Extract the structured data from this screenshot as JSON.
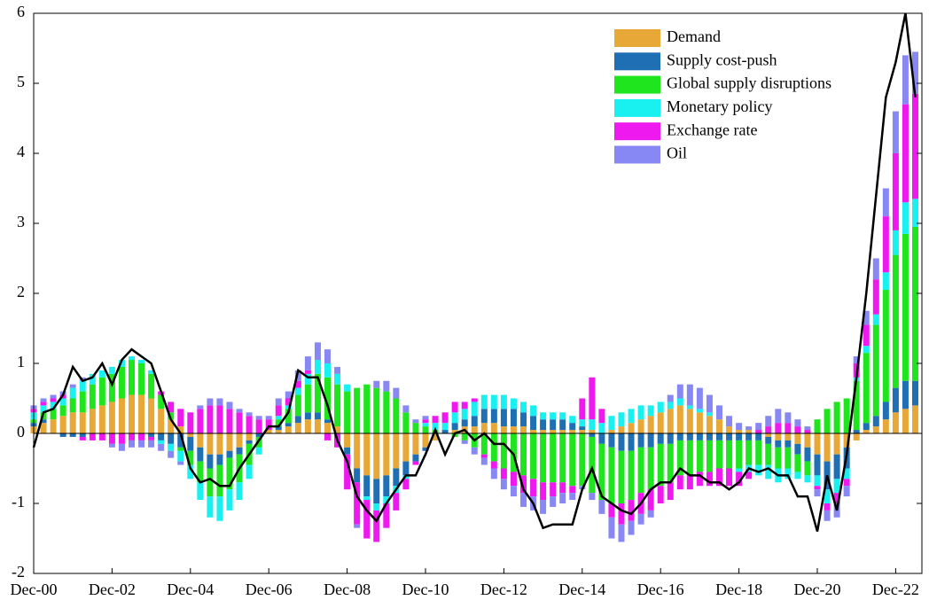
{
  "chart_data": {
    "type": "bar",
    "stacked": true,
    "categories": [
      "Dec-00",
      null,
      null,
      null,
      null,
      null,
      null,
      null,
      "Dec-02",
      null,
      null,
      null,
      null,
      null,
      null,
      null,
      "Dec-04",
      null,
      null,
      null,
      null,
      null,
      null,
      null,
      "Dec-06",
      null,
      null,
      null,
      null,
      null,
      null,
      null,
      "Dec-08",
      null,
      null,
      null,
      null,
      null,
      null,
      null,
      "Dec-10",
      null,
      null,
      null,
      null,
      null,
      null,
      null,
      "Dec-12",
      null,
      null,
      null,
      null,
      null,
      null,
      null,
      "Dec-14",
      null,
      null,
      null,
      null,
      null,
      null,
      null,
      "Dec-16",
      null,
      null,
      null,
      null,
      null,
      null,
      null,
      "Dec-18",
      null,
      null,
      null,
      null,
      null,
      null,
      null,
      "Dec-20",
      null,
      null,
      null,
      null,
      null,
      null,
      null,
      "Dec-22",
      null,
      null
    ],
    "series": [
      {
        "name": "Demand",
        "color": "#e8a838",
        "values": [
          0.1,
          0.15,
          0.2,
          0.25,
          0.3,
          0.3,
          0.35,
          0.4,
          0.45,
          0.5,
          0.55,
          0.55,
          0.5,
          0.35,
          0.2,
          0.1,
          -0.05,
          -0.2,
          -0.3,
          -0.3,
          -0.25,
          -0.2,
          -0.1,
          0,
          0.05,
          0.05,
          0.1,
          0.15,
          0.2,
          0.2,
          0.15,
          0.1,
          -0.2,
          -0.5,
          -0.6,
          -0.65,
          -0.6,
          -0.5,
          -0.4,
          -0.3,
          -0.2,
          -0.1,
          0,
          0.05,
          0.1,
          0.1,
          0.15,
          0.15,
          0.1,
          0.1,
          0.1,
          0.05,
          0.05,
          0.05,
          0.05,
          0.05,
          0.05,
          0.05,
          0,
          0.05,
          0.1,
          0.15,
          0.2,
          0.25,
          0.3,
          0.35,
          0.4,
          0.35,
          0.3,
          0.25,
          0.2,
          0.1,
          0.05,
          0.05,
          0,
          -0.05,
          -0.1,
          -0.1,
          -0.15,
          -0.2,
          -0.3,
          -0.4,
          -0.3,
          -0.2,
          -0.1,
          0.05,
          0.1,
          0.2,
          0.3,
          0.35,
          0.4
        ]
      },
      {
        "name": "Supply cost-push",
        "color": "#1f6fb5",
        "values": [
          0.05,
          0.05,
          0,
          -0.05,
          -0.05,
          -0.05,
          0,
          0,
          0,
          0,
          0,
          0,
          -0.05,
          -0.1,
          -0.15,
          -0.2,
          -0.2,
          -0.2,
          -0.2,
          -0.15,
          -0.1,
          -0.1,
          -0.05,
          -0.05,
          0,
          0.05,
          0.05,
          0.1,
          0.1,
          0.1,
          0.05,
          0,
          -0.1,
          -0.2,
          -0.3,
          -0.35,
          -0.3,
          -0.25,
          -0.2,
          -0.1,
          -0.05,
          0,
          0.05,
          0.1,
          0.1,
          0.15,
          0.2,
          0.2,
          0.25,
          0.25,
          0.2,
          0.2,
          0.15,
          0.15,
          0.15,
          0.1,
          0.05,
          -0.05,
          -0.15,
          -0.2,
          -0.25,
          -0.25,
          -0.2,
          -0.2,
          -0.15,
          -0.15,
          -0.1,
          -0.1,
          -0.1,
          -0.1,
          -0.1,
          -0.1,
          -0.1,
          -0.1,
          -0.1,
          -0.1,
          -0.1,
          -0.1,
          -0.15,
          -0.2,
          -0.3,
          -0.4,
          -0.35,
          -0.3,
          0.05,
          0.1,
          0.15,
          0.25,
          0.35,
          0.4,
          0.35
        ]
      },
      {
        "name": "Global supply disruptions",
        "color": "#1ee51e",
        "values": [
          0.05,
          0.1,
          0.15,
          0.15,
          0.2,
          0.3,
          0.35,
          0.4,
          0.4,
          0.45,
          0.5,
          0.45,
          0.35,
          0.2,
          0.1,
          -0.05,
          -0.2,
          -0.3,
          -0.4,
          -0.45,
          -0.45,
          -0.4,
          -0.3,
          -0.15,
          0,
          0.1,
          0.2,
          0.3,
          0.4,
          0.55,
          0.6,
          0.6,
          0.6,
          0.65,
          0.7,
          0.65,
          0.6,
          0.5,
          0.3,
          0.15,
          0.1,
          0.05,
          0,
          -0.05,
          -0.1,
          -0.2,
          -0.3,
          -0.4,
          -0.5,
          -0.55,
          -0.6,
          -0.65,
          -0.7,
          -0.7,
          -0.7,
          -0.75,
          -0.75,
          -0.8,
          -0.8,
          -0.8,
          -0.75,
          -0.7,
          -0.65,
          -0.6,
          -0.6,
          -0.55,
          -0.5,
          -0.5,
          -0.45,
          -0.45,
          -0.4,
          -0.4,
          -0.4,
          -0.35,
          -0.35,
          -0.3,
          -0.3,
          -0.3,
          -0.25,
          -0.2,
          0.2,
          0.35,
          0.45,
          0.5,
          0.7,
          1.0,
          1.3,
          1.6,
          1.9,
          2.1,
          2.2
        ]
      },
      {
        "name": "Monetary policy",
        "color": "#19f0f0",
        "values": [
          0.1,
          0.1,
          0.1,
          0.1,
          0.15,
          0.15,
          0.15,
          0.1,
          0.1,
          0.1,
          0.05,
          0.05,
          0.05,
          -0.05,
          -0.1,
          -0.15,
          -0.2,
          -0.25,
          -0.3,
          -0.35,
          -0.3,
          -0.25,
          -0.2,
          -0.1,
          0,
          0.05,
          0.05,
          0.1,
          0.15,
          0.2,
          0.2,
          0.15,
          0.1,
          0,
          -0.05,
          -0.1,
          -0.1,
          -0.1,
          -0.05,
          0,
          0.05,
          0.1,
          0.1,
          0.15,
          0.15,
          0.2,
          0.2,
          0.2,
          0.2,
          0.15,
          0.15,
          0.15,
          0.1,
          0.1,
          0.1,
          0.1,
          0.1,
          0.15,
          0.15,
          0.2,
          0.2,
          0.2,
          0.2,
          0.15,
          0.15,
          0.1,
          0.1,
          0.05,
          0.05,
          0.05,
          0,
          0,
          -0.05,
          -0.1,
          -0.15,
          -0.2,
          -0.2,
          -0.15,
          -0.1,
          -0.1,
          -0.15,
          -0.2,
          -0.2,
          -0.15,
          0.05,
          0.1,
          0.15,
          0.25,
          0.35,
          0.45,
          0.4
        ]
      },
      {
        "name": "Exchange rate",
        "color": "#ee19ee",
        "values": [
          0.05,
          0.05,
          0.05,
          0.05,
          0,
          -0.05,
          -0.1,
          -0.1,
          -0.15,
          -0.15,
          -0.1,
          -0.1,
          -0.05,
          0.05,
          0.15,
          0.25,
          0.3,
          0.35,
          0.4,
          0.4,
          0.35,
          0.3,
          0.25,
          0.2,
          0.15,
          0.15,
          0.1,
          0.1,
          0.05,
          0,
          -0.1,
          -0.2,
          -0.5,
          -0.6,
          -0.55,
          -0.45,
          -0.35,
          -0.25,
          -0.15,
          -0.05,
          0.05,
          0.1,
          0.15,
          0.15,
          0.1,
          0.05,
          -0.05,
          -0.1,
          -0.15,
          -0.2,
          -0.25,
          -0.25,
          -0.25,
          -0.2,
          -0.15,
          -0.1,
          0.3,
          0.6,
          0.2,
          -0.2,
          -0.3,
          -0.3,
          -0.3,
          -0.3,
          -0.25,
          -0.25,
          -0.2,
          -0.2,
          -0.2,
          -0.2,
          -0.25,
          -0.25,
          -0.2,
          -0.1,
          0.05,
          0.1,
          0.15,
          0.15,
          0.1,
          0.05,
          -0.05,
          -0.1,
          -0.15,
          -0.1,
          0.2,
          0.3,
          0.5,
          0.8,
          1.1,
          1.4,
          1.5
        ]
      },
      {
        "name": "Oil",
        "color": "#8888f5",
        "values": [
          0.05,
          0.05,
          0.05,
          0.05,
          0.05,
          0.05,
          0,
          0,
          -0.05,
          -0.1,
          -0.1,
          -0.1,
          -0.1,
          -0.1,
          -0.1,
          -0.05,
          0,
          0.05,
          0.1,
          0.1,
          0.1,
          0.05,
          0.05,
          0.05,
          0.05,
          0.1,
          0.1,
          0.15,
          0.2,
          0.25,
          0.2,
          0.1,
          0,
          -0.05,
          0,
          0.1,
          0.15,
          0.15,
          0.1,
          0.05,
          0.05,
          0,
          0,
          0,
          -0.05,
          -0.1,
          -0.1,
          -0.15,
          -0.15,
          -0.15,
          -0.2,
          -0.2,
          -0.2,
          -0.15,
          -0.15,
          -0.1,
          -0.05,
          -0.1,
          -0.2,
          -0.3,
          -0.25,
          -0.2,
          -0.15,
          -0.1,
          0,
          0.1,
          0.2,
          0.3,
          0.3,
          0.25,
          0.2,
          0.15,
          0.1,
          0.05,
          0.1,
          0.15,
          0.2,
          0.15,
          0.1,
          0.05,
          -0.1,
          -0.15,
          -0.2,
          -0.15,
          0.1,
          0.2,
          0.3,
          0.4,
          0.6,
          0.7,
          0.6
        ]
      }
    ],
    "line": {
      "color": "#000000",
      "values": [
        -0.2,
        0.3,
        0.35,
        0.55,
        0.95,
        0.75,
        0.8,
        1.0,
        0.7,
        1.05,
        1.2,
        1.1,
        1.0,
        0.6,
        0.2,
        0.0,
        -0.5,
        -0.7,
        -0.65,
        -0.75,
        -0.75,
        -0.5,
        -0.3,
        -0.1,
        0.1,
        0.1,
        0.3,
        0.9,
        0.8,
        0.8,
        0.4,
        -0.1,
        -0.4,
        -0.9,
        -1.1,
        -1.25,
        -1.0,
        -0.8,
        -0.6,
        -0.6,
        -0.3,
        0.05,
        -0.3,
        0.0,
        0.05,
        -0.1,
        0.0,
        -0.15,
        -0.15,
        -0.3,
        -0.8,
        -1.0,
        -1.35,
        -1.3,
        -1.3,
        -1.3,
        -0.8,
        -0.5,
        -0.9,
        -1.0,
        -1.1,
        -1.15,
        -1.0,
        -0.8,
        -0.7,
        -0.7,
        -0.5,
        -0.6,
        -0.6,
        -0.7,
        -0.7,
        -0.8,
        -0.7,
        -0.5,
        -0.55,
        -0.5,
        -0.6,
        -0.6,
        -0.9,
        -0.9,
        -1.4,
        -0.6,
        -1.1,
        -0.3,
        0.8,
        2.0,
        3.4,
        4.8,
        5.3,
        6.0,
        4.8
      ]
    },
    "ylim": [
      -2,
      6
    ],
    "yticks": [
      -2,
      -1,
      0,
      1,
      2,
      3,
      4,
      5,
      6
    ],
    "legend": "upper right"
  }
}
